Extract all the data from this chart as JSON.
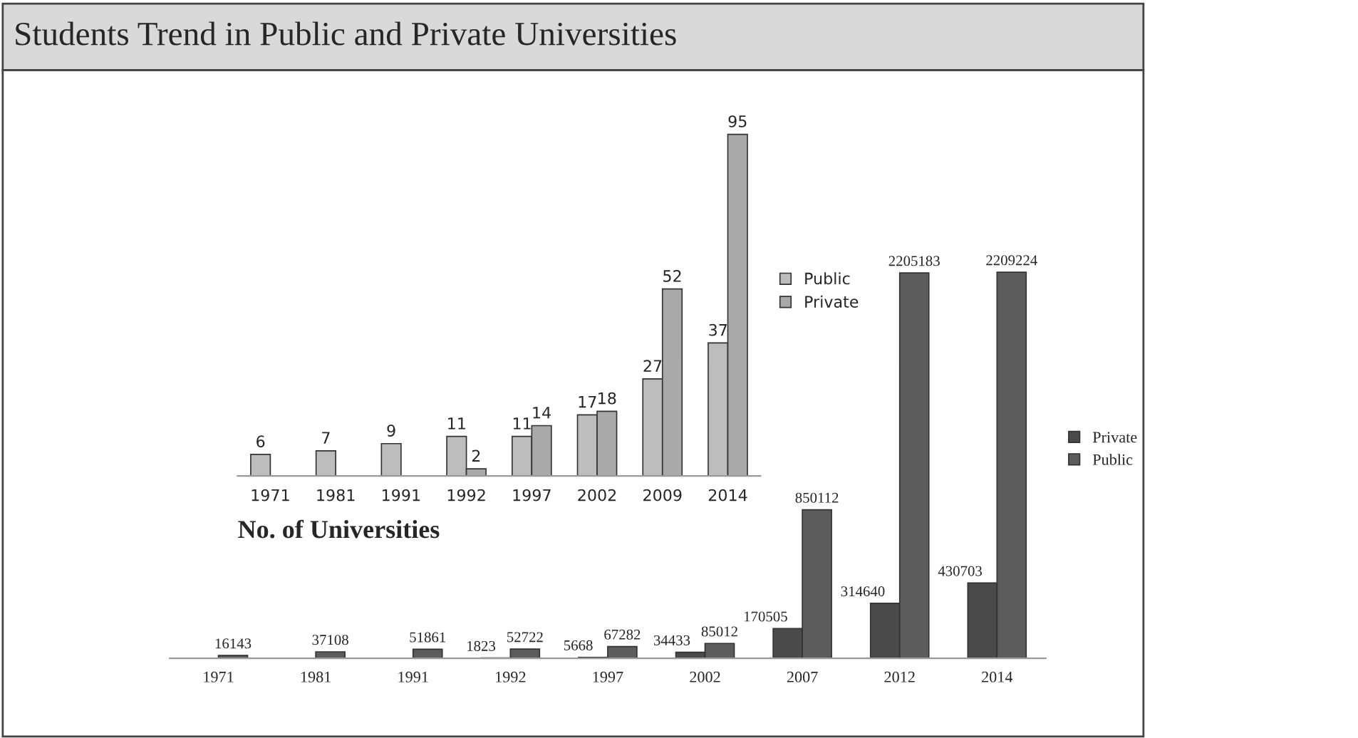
{
  "chart_data": [
    {
      "type": "bar",
      "title": "Students Trend in Public and Private Universities",
      "xlabel": "No. of Universities",
      "categories": [
        "1971",
        "1981",
        "1991",
        "1992",
        "1997",
        "2002",
        "2009",
        "2014"
      ],
      "series": [
        {
          "name": "Public",
          "color": "#bdbdbd",
          "values": [
            6,
            7,
            9,
            11,
            11,
            17,
            27,
            37
          ]
        },
        {
          "name": "Private",
          "color": "#a9a9a9",
          "values": [
            null,
            null,
            null,
            2,
            14,
            18,
            52,
            95
          ]
        }
      ],
      "data_labels": true,
      "legend": "right",
      "tick_labels": "x",
      "grid": false
    },
    {
      "type": "bar",
      "categories": [
        "1971",
        "1981",
        "1991",
        "1992",
        "1997",
        "2002",
        "2007",
        "2012",
        "2014"
      ],
      "series": [
        {
          "name": "Private",
          "color": "#4a4a4a",
          "values": [
            null,
            null,
            null,
            1823,
            5668,
            34433,
            170505,
            314640,
            430703
          ]
        },
        {
          "name": "Public",
          "color": "#5c5c5c",
          "values": [
            16143,
            37108,
            51861,
            52722,
            67282,
            85012,
            850112,
            2205183,
            2209224
          ]
        }
      ],
      "data_labels": true,
      "legend": "right",
      "tick_labels": "x",
      "grid": false
    }
  ]
}
